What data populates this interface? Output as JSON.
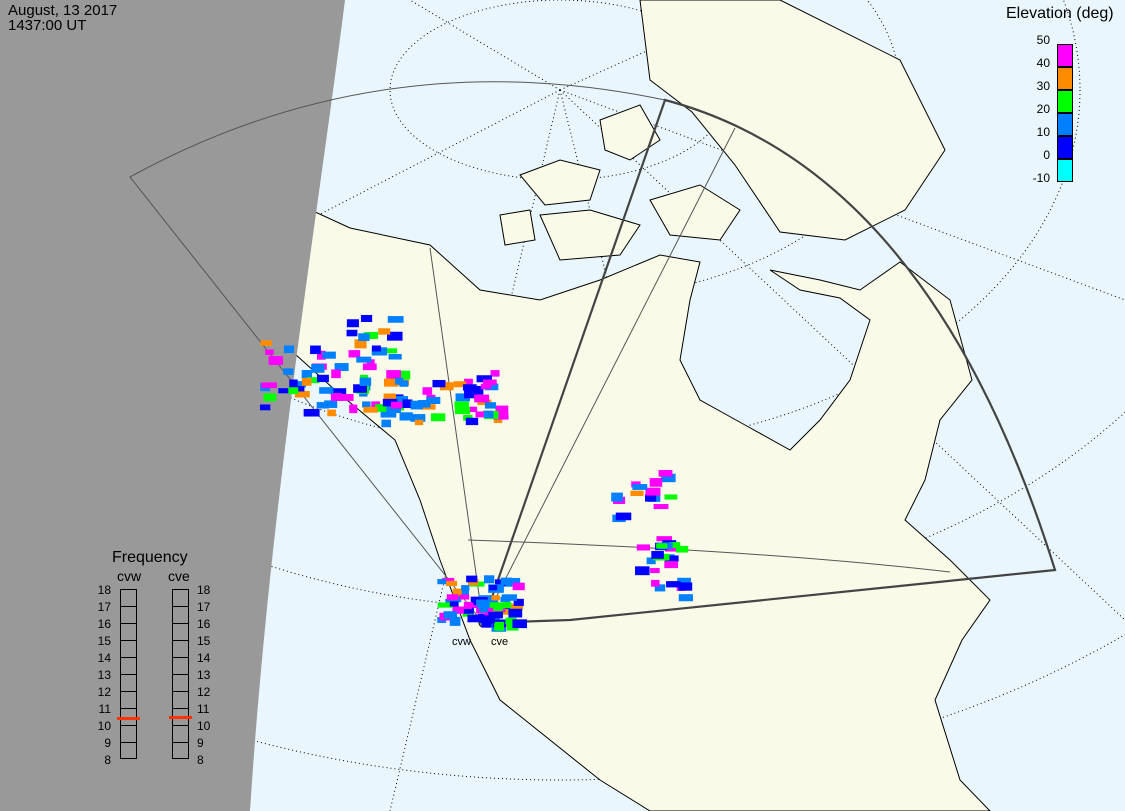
{
  "header": {
    "date": "August, 13 2017",
    "time": "1437:00 UT"
  },
  "elevation_legend": {
    "title": "Elevation (deg)",
    "ticks": [
      "50",
      "40",
      "30",
      "20",
      "10",
      "0",
      "-10"
    ],
    "bins": [
      {
        "range": "40-50",
        "color": "#ff00ff"
      },
      {
        "range": "30-40",
        "color": "#ff8c00"
      },
      {
        "range": "20-30",
        "color": "#00ff00"
      },
      {
        "range": "10-20",
        "color": "#0080ff"
      },
      {
        "range": "0-10",
        "color": "#0000ff"
      },
      {
        "range": "-10-0",
        "color": "#00ffff"
      }
    ]
  },
  "frequency": {
    "title": "Frequency",
    "ticks": [
      "18",
      "17",
      "16",
      "15",
      "14",
      "13",
      "12",
      "11",
      "10",
      "9",
      "8"
    ],
    "radars": [
      {
        "name": "cvw",
        "value_mhz": 10.4
      },
      {
        "name": "cve",
        "value_mhz": 10.45
      }
    ],
    "marker_color": "#ff3300"
  },
  "sites": [
    {
      "name": "cvw"
    },
    {
      "name": "cve"
    }
  ],
  "colors": {
    "ocean": "#eaf6fd",
    "land": "#fafae8",
    "night": "#999999"
  }
}
